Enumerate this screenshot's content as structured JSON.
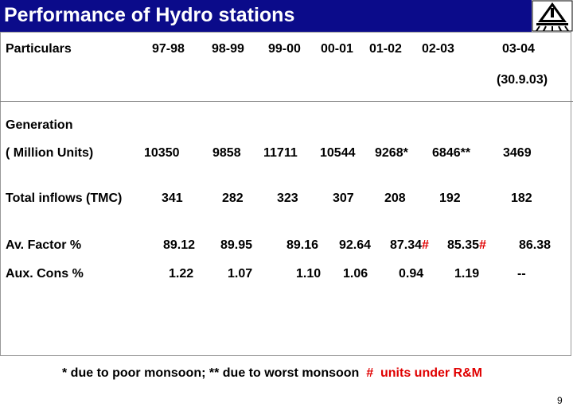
{
  "title": "Performance of Hydro stations",
  "header": {
    "particulars": "Particulars",
    "years": [
      "97-98",
      "98-99",
      "99-00",
      "00-01",
      "01-02",
      "02-03",
      "03-04"
    ],
    "year_note": "(30.9.03)"
  },
  "generation": {
    "label": "Generation",
    "unit_label": "( Million Units)",
    "values": [
      "10350",
      "9858",
      "11711",
      "10544",
      "9268*",
      "6846**",
      "3469"
    ]
  },
  "inflows": {
    "label": "Total inflows (TMC)",
    "values": [
      "341",
      "282",
      "323",
      "307",
      "208",
      "192",
      "182"
    ]
  },
  "av_factor": {
    "label": "Av.  Factor %",
    "values": [
      "89.12",
      "89.95",
      "89.16",
      "92.64",
      "87.34",
      "85.35",
      "86.38"
    ],
    "marks": [
      "",
      "",
      "",
      "",
      "#",
      "#",
      ""
    ]
  },
  "aux_cons": {
    "label": "Aux. Cons %",
    "values": [
      "1.22",
      "1.07",
      "1.10",
      "1.06",
      "0.94",
      "1.19",
      "--"
    ]
  },
  "footnote": {
    "part1": "* due to poor monsoon; ** due to worst monsoon  ",
    "hash": "#",
    "part2": "  units under R&M"
  },
  "page_number": "9",
  "colors": {
    "title_bar": "#0b0b8a",
    "title_text": "#ffffff",
    "highlight": "#e00000"
  },
  "logo_icon": "power-plant-logo-icon"
}
